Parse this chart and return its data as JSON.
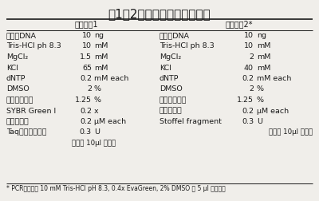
{
  "title": "表1．2つの異なる反応液組成",
  "col1_header": "反応溶液1",
  "col2_header": "反応溶液2*",
  "rows1": [
    [
      "ゲノムDNA",
      "10",
      "ng"
    ],
    [
      "Tris-HCl ph 8.3",
      "10",
      "mM"
    ],
    [
      "MgCl₂",
      "1.5",
      "mM"
    ],
    [
      "KCl",
      "65",
      "mM"
    ],
    [
      "dNTP",
      "0.2",
      "mM each"
    ],
    [
      "DMSO",
      "2",
      "%"
    ],
    [
      "グリセロール",
      "1.25",
      "%"
    ],
    [
      "SYBR Green I",
      "0.2",
      "x"
    ],
    [
      "プライマー",
      "0.2",
      "μM each"
    ],
    [
      "Taqポリメラーゼ",
      "0.3",
      "U"
    ],
    [
      "",
      "純水で 10μl に調整",
      ""
    ]
  ],
  "rows2": [
    [
      "ゲノムDNA",
      "10",
      "ng"
    ],
    [
      "Tris-HCl ph 8.3",
      "10",
      "mM"
    ],
    [
      "MgCl₂",
      "2",
      "mM"
    ],
    [
      "KCl",
      "40",
      "mM"
    ],
    [
      "dNTP",
      "0.2",
      "mM each"
    ],
    [
      "DMSO",
      "2",
      "%"
    ],
    [
      "グリセロール",
      "1.25",
      "%"
    ],
    [
      "プライマー",
      "0.2",
      "μM each"
    ],
    [
      "Stoffel fragment",
      "0.3",
      "U"
    ],
    [
      "",
      "純水で 10μl に調整",
      ""
    ]
  ],
  "footnote": "* PCR反応後に 10 mM Tris-HCl pH 8.3, 0.4x EvaGreen, 2% DMSO を 5 μl 加える。",
  "bg_color": "#f0eeea",
  "text_color": "#1a1a1a"
}
